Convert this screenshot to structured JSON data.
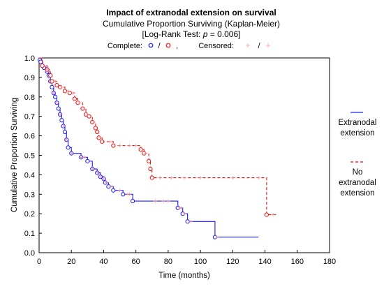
{
  "colors": {
    "extranodal": "#1a1aff",
    "no_extranodal": "#ee1111",
    "censored_mark": "#ff8888",
    "frame": "#000000"
  },
  "chart_data": {
    "type": "line",
    "kind": "kaplan-meier",
    "title": "Impact of extranodal extension on survival",
    "subtitle": "Cumulative Proportion Surviving (Kaplan-Meier)",
    "test_prefix": "[Log-Rank Test: ",
    "test_p": "p",
    "test_suffix": " = 0.006]",
    "legend_top": {
      "complete_label": "Complete:",
      "slash": "/",
      "comma": ",",
      "censored_label": "Censored:"
    },
    "xlabel": "Time (months)",
    "ylabel": "Cumulative Proportion Surviving",
    "xlim": [
      0,
      180
    ],
    "ylim": [
      0,
      1.0
    ],
    "x_ticks": [
      0,
      20,
      40,
      60,
      80,
      100,
      120,
      140,
      160,
      180
    ],
    "y_ticks": [
      0.0,
      0.1,
      0.2,
      0.3,
      0.4,
      0.5,
      0.6,
      0.7,
      0.8,
      0.9,
      1.0
    ],
    "grid": false,
    "legend_position": "right",
    "series": [
      {
        "name": "Extranodal extension",
        "style": "solid",
        "steps": [
          [
            0,
            1.0
          ],
          [
            0.5,
            0.99
          ],
          [
            1,
            0.98
          ],
          [
            2,
            0.96
          ],
          [
            3,
            0.95
          ],
          [
            5,
            0.93
          ],
          [
            6,
            0.91
          ],
          [
            7,
            0.88
          ],
          [
            8,
            0.85
          ],
          [
            9,
            0.82
          ],
          [
            10,
            0.8
          ],
          [
            11,
            0.77
          ],
          [
            12,
            0.74
          ],
          [
            13,
            0.71
          ],
          [
            14,
            0.68
          ],
          [
            15,
            0.65
          ],
          [
            16,
            0.62
          ],
          [
            17,
            0.58
          ],
          [
            18,
            0.54
          ],
          [
            20,
            0.51
          ],
          [
            26,
            0.49
          ],
          [
            30,
            0.47
          ],
          [
            33,
            0.43
          ],
          [
            36,
            0.41
          ],
          [
            38,
            0.39
          ],
          [
            40,
            0.38
          ],
          [
            41,
            0.36
          ],
          [
            43,
            0.34
          ],
          [
            46,
            0.32
          ],
          [
            52,
            0.3
          ],
          [
            58,
            0.265
          ],
          [
            86,
            0.23
          ],
          [
            89,
            0.2
          ],
          [
            92,
            0.16
          ],
          [
            109,
            0.08
          ]
        ],
        "end_x": 136,
        "censored": [
          7,
          9,
          11,
          13,
          15,
          17,
          20,
          26,
          28,
          33,
          36,
          38,
          40,
          42,
          45,
          50,
          55,
          56,
          72,
          77,
          80,
          87,
          88,
          90,
          94,
          110
        ]
      },
      {
        "name": "No extranodal extension",
        "style": "dashed",
        "steps": [
          [
            0,
            1.0
          ],
          [
            2,
            0.96
          ],
          [
            5,
            0.94
          ],
          [
            7,
            0.91
          ],
          [
            8,
            0.88
          ],
          [
            11,
            0.86
          ],
          [
            13,
            0.85
          ],
          [
            16,
            0.83
          ],
          [
            19,
            0.82
          ],
          [
            22,
            0.79
          ],
          [
            24,
            0.77
          ],
          [
            27,
            0.74
          ],
          [
            29,
            0.71
          ],
          [
            31,
            0.7
          ],
          [
            33,
            0.67
          ],
          [
            35,
            0.64
          ],
          [
            36,
            0.62
          ],
          [
            37,
            0.59
          ],
          [
            39,
            0.57
          ],
          [
            46,
            0.55
          ],
          [
            63,
            0.53
          ],
          [
            65,
            0.51
          ],
          [
            68,
            0.47
          ],
          [
            69,
            0.43
          ],
          [
            70,
            0.385
          ],
          [
            141,
            0.195
          ]
        ],
        "end_x": 148,
        "censored": [
          5,
          10,
          14,
          18,
          21,
          25,
          30,
          34,
          38,
          44,
          50,
          56,
          60,
          66,
          75,
          82,
          90,
          100,
          120,
          136,
          145
        ]
      }
    ]
  }
}
